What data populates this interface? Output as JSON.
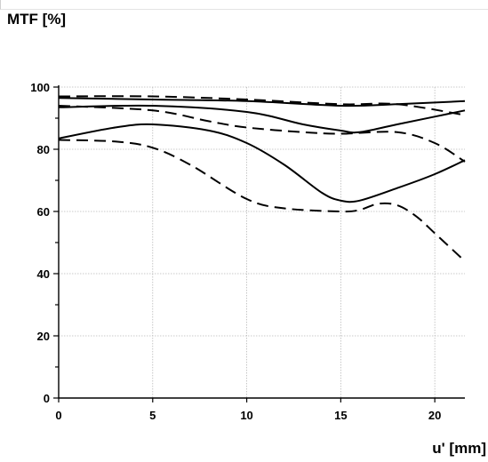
{
  "chart_data": {
    "type": "line",
    "title": "",
    "ylabel": "MTF [%]",
    "xlabel": "u' [mm]",
    "xlim": [
      0,
      21.6
    ],
    "ylim": [
      0,
      100
    ],
    "xticks": [
      0,
      5,
      10,
      15,
      20
    ],
    "yticks": [
      0,
      20,
      40,
      60,
      80,
      100
    ],
    "grid": true,
    "legend": "none",
    "series": [
      {
        "style": "solid",
        "x": [
          0,
          5,
          10,
          15,
          18,
          21.6
        ],
        "y": [
          96.5,
          96,
          95.5,
          94,
          94.5,
          95.5
        ]
      },
      {
        "style": "dashed",
        "x": [
          0,
          5,
          10,
          15,
          18,
          21.6
        ],
        "y": [
          97,
          97,
          96,
          94.5,
          94.5,
          91
        ]
      },
      {
        "style": "solid",
        "x": [
          0,
          5,
          10,
          13,
          15,
          16,
          18,
          21.6
        ],
        "y": [
          93.5,
          94,
          92,
          88,
          86,
          85.5,
          88,
          92.5
        ]
      },
      {
        "style": "dashed",
        "x": [
          0,
          5,
          8,
          10,
          13,
          15,
          18,
          20,
          21.6
        ],
        "y": [
          94,
          92.5,
          89,
          87,
          85.5,
          85,
          85.5,
          82,
          76
        ]
      },
      {
        "style": "solid",
        "x": [
          0,
          3,
          5,
          8,
          10,
          12,
          14,
          15,
          16,
          18,
          20,
          21.6
        ],
        "y": [
          83.5,
          87,
          88,
          86,
          82,
          75,
          66,
          63.5,
          63.5,
          67.5,
          72,
          76.5
        ]
      },
      {
        "style": "dashed",
        "x": [
          0,
          3,
          5,
          7,
          10,
          12,
          15,
          16,
          17,
          18,
          19,
          20,
          21.6
        ],
        "y": [
          83,
          82.5,
          80.5,
          75,
          64,
          61,
          60,
          60.5,
          62.5,
          62,
          58.5,
          53,
          44
        ]
      }
    ]
  }
}
